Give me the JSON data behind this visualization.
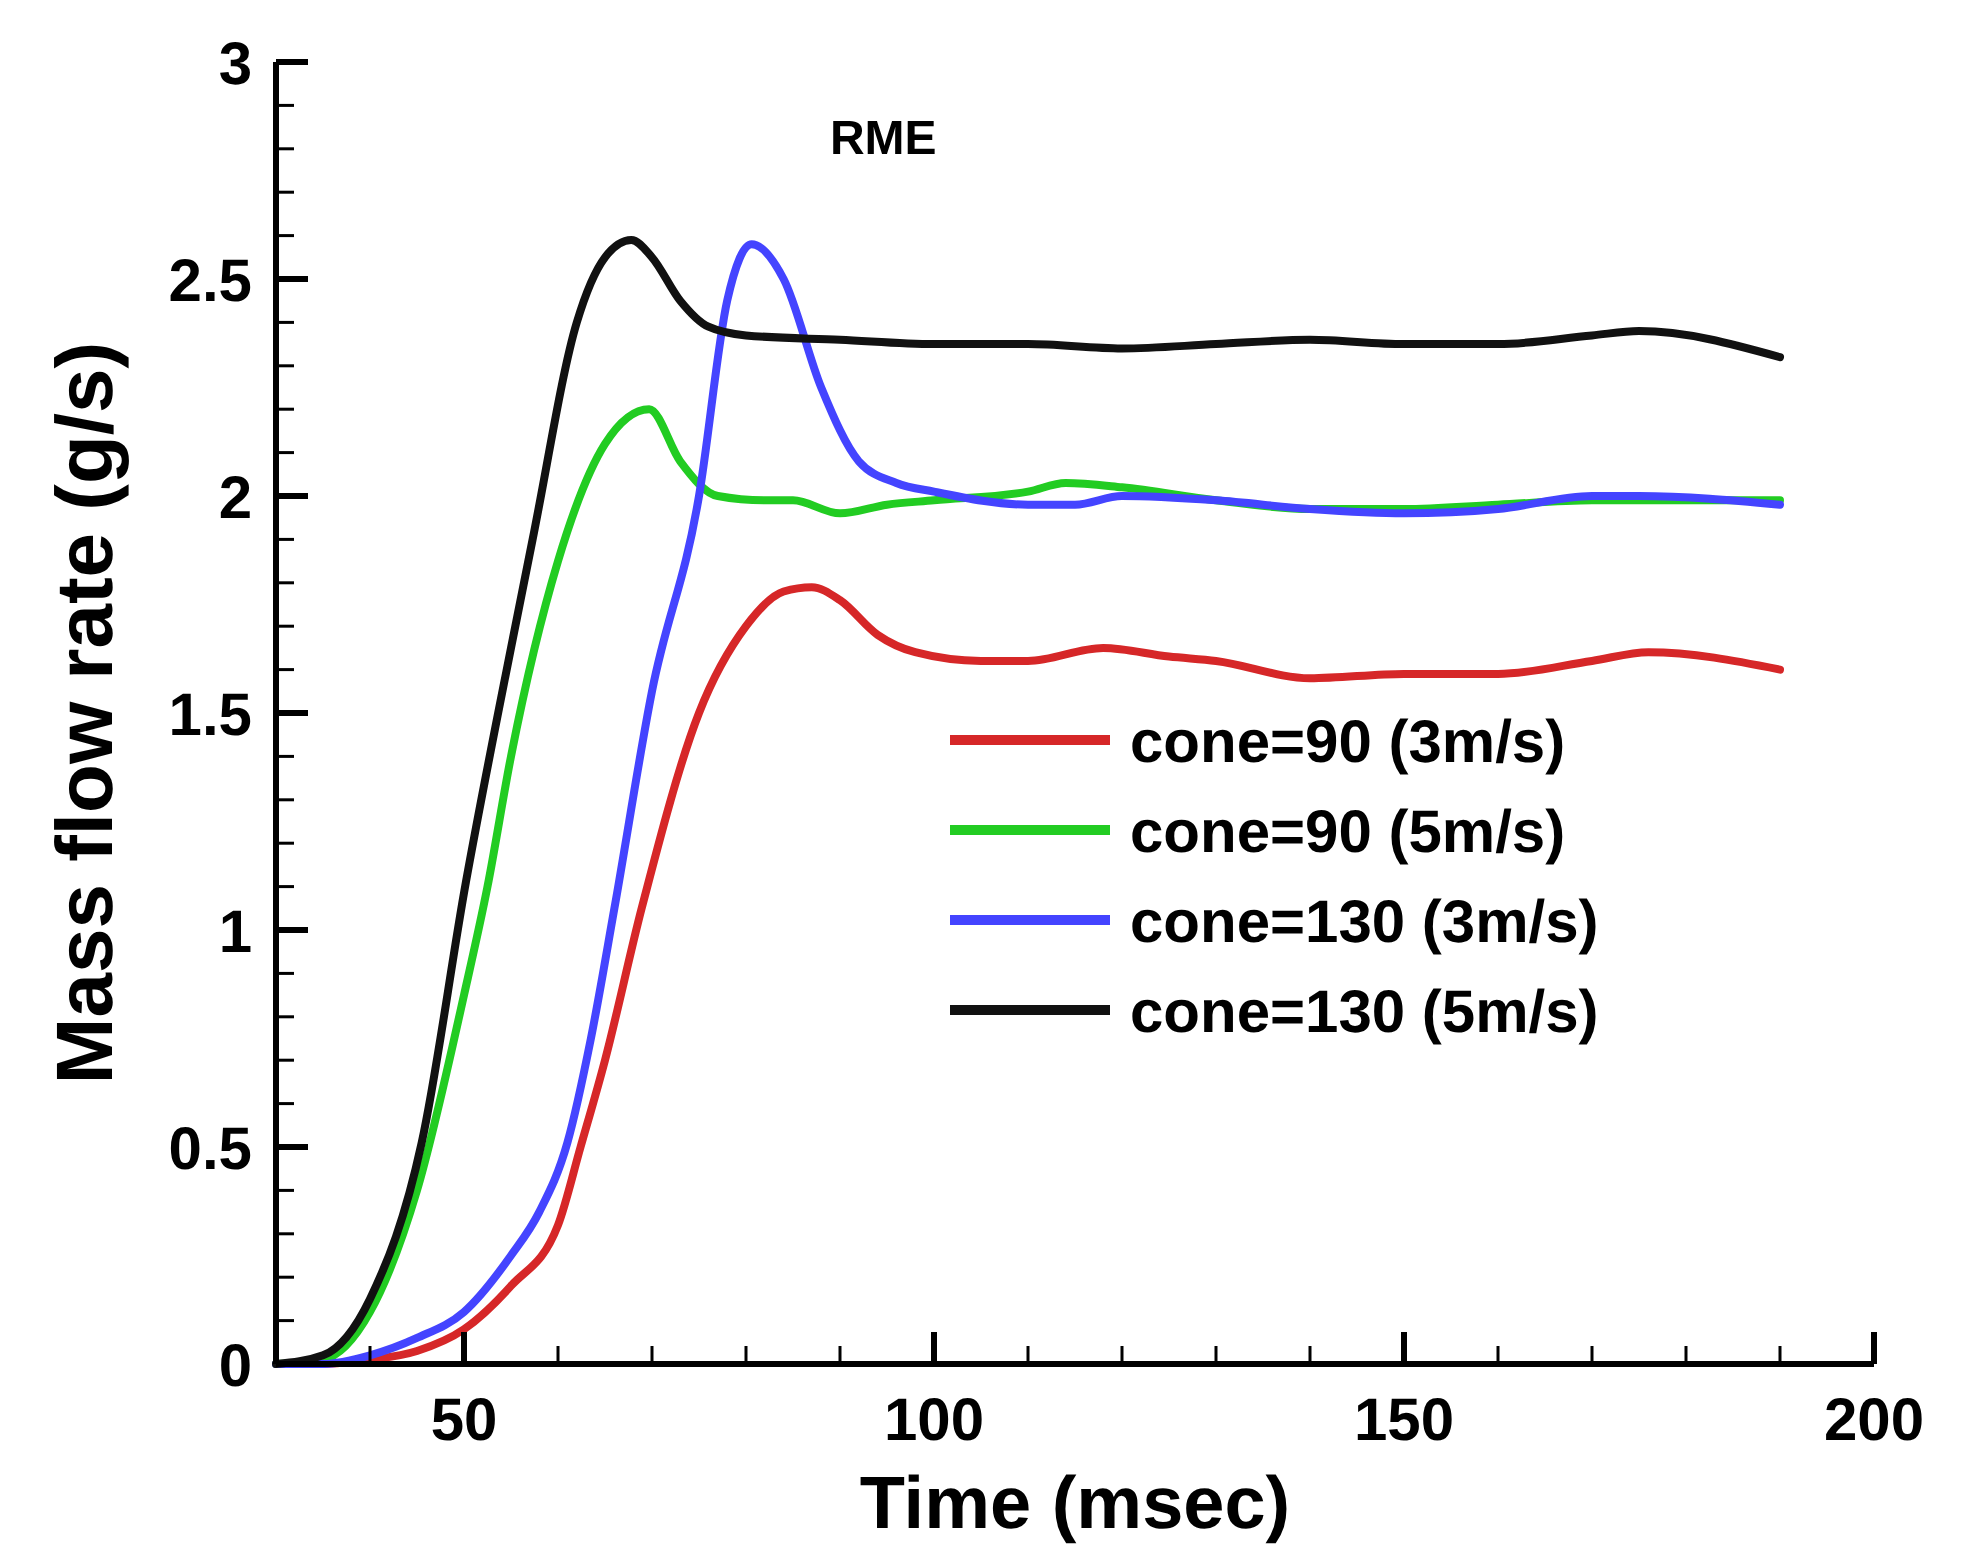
{
  "chart_data": {
    "type": "line",
    "title": "RME",
    "xlabel": "Time (msec)",
    "ylabel": "Mass flow rate (g/s)",
    "xlim": [
      30,
      200
    ],
    "ylim": [
      0,
      3
    ],
    "xticks": [
      {
        "value": 40,
        "label": null
      },
      50,
      {
        "value": 60,
        "label": null
      },
      {
        "value": 70,
        "label": null
      },
      {
        "value": 80,
        "label": null
      },
      {
        "value": 90,
        "label": null
      },
      100,
      {
        "value": 110,
        "label": null
      },
      {
        "value": 120,
        "label": null
      },
      {
        "value": 130,
        "label": null
      },
      {
        "value": 140,
        "label": null
      },
      150,
      {
        "value": 160,
        "label": null
      },
      {
        "value": 170,
        "label": null
      },
      {
        "value": 180,
        "label": null
      },
      {
        "value": 190,
        "label": null
      },
      200
    ],
    "yticks": [
      0,
      {
        "value": 0.1,
        "label": null
      },
      {
        "value": 0.2,
        "label": null
      },
      {
        "value": 0.3,
        "label": null
      },
      {
        "value": 0.4,
        "label": null
      },
      0.5,
      {
        "value": 0.6,
        "label": null
      },
      {
        "value": 0.7,
        "label": null
      },
      {
        "value": 0.8,
        "label": null
      },
      {
        "value": 0.9,
        "label": null
      },
      1,
      {
        "value": 1.1,
        "label": null
      },
      {
        "value": 1.2,
        "label": null
      },
      {
        "value": 1.3,
        "label": null
      },
      {
        "value": 1.4,
        "label": null
      },
      1.5,
      {
        "value": 1.6,
        "label": null
      },
      {
        "value": 1.7,
        "label": null
      },
      {
        "value": 1.8,
        "label": null
      },
      {
        "value": 1.9,
        "label": null
      },
      2,
      {
        "value": 2.1,
        "label": null
      },
      {
        "value": 2.2,
        "label": null
      },
      {
        "value": 2.3,
        "label": null
      },
      {
        "value": 2.4,
        "label": null
      },
      2.5,
      {
        "value": 2.6,
        "label": null
      },
      {
        "value": 2.7,
        "label": null
      },
      {
        "value": 2.8,
        "label": null
      },
      {
        "value": 2.9,
        "label": null
      },
      3
    ],
    "grid": false,
    "legend": "right",
    "marker": "none",
    "line_style": "solid",
    "series": [
      {
        "name": "cone=90 (3m/s)",
        "color": "#d62728",
        "x": [
          30,
          35,
          40,
          45,
          50,
          55,
          60,
          62.4,
          65,
          68.9,
          75,
          80,
          84,
          87,
          90,
          94,
          98,
          105,
          110,
          118,
          125,
          130,
          140,
          150,
          160,
          170,
          176,
          190
        ],
        "values": [
          0,
          0,
          0.01,
          0.03,
          0.08,
          0.18,
          0.32,
          0.5,
          0.7,
          1.05,
          1.5,
          1.7,
          1.78,
          1.79,
          1.76,
          1.68,
          1.64,
          1.62,
          1.62,
          1.65,
          1.63,
          1.62,
          1.58,
          1.59,
          1.59,
          1.62,
          1.64,
          1.6
        ]
      },
      {
        "name": "cone=90 (5m/s)",
        "color": "#22cc22",
        "x": [
          30,
          35,
          40,
          45,
          50,
          52.5,
          55,
          60,
          65,
          69.7,
          73,
          77,
          82,
          85,
          90,
          95,
          100,
          110,
          114,
          120,
          130,
          140,
          150,
          160,
          170,
          180,
          190
        ],
        "values": [
          0,
          0.01,
          0.12,
          0.4,
          0.85,
          1.1,
          1.4,
          1.85,
          2.12,
          2.2,
          2.08,
          2.0,
          1.99,
          1.99,
          1.96,
          1.98,
          1.99,
          2.01,
          2.03,
          2.02,
          1.99,
          1.97,
          1.97,
          1.98,
          1.99,
          1.99,
          1.99
        ]
      },
      {
        "name": "cone=130 (3m/s)",
        "color": "#4444ff",
        "x": [
          30,
          35,
          40,
          45,
          50,
          55,
          58,
          61,
          63.5,
          66,
          70,
          75,
          78,
          80.6,
          84,
          88,
          92,
          96,
          100,
          110,
          115,
          120,
          130,
          140,
          150,
          160,
          170,
          175,
          190
        ],
        "values": [
          0,
          0,
          0.02,
          0.06,
          0.12,
          0.25,
          0.35,
          0.51,
          0.75,
          1.05,
          1.55,
          2.0,
          2.45,
          2.58,
          2.5,
          2.25,
          2.08,
          2.03,
          2.01,
          1.98,
          1.98,
          2.0,
          1.99,
          1.97,
          1.96,
          1.97,
          2.0,
          2.0,
          1.98
        ]
      },
      {
        "name": "cone=130 (5m/s)",
        "color": "#111111",
        "x": [
          30,
          35,
          40,
          45.5,
          50.2,
          55,
          57.3,
          62,
          65,
          67.8,
          70,
          73,
          76,
          80,
          90,
          100,
          110,
          120,
          130,
          140,
          150,
          160,
          170,
          175,
          190
        ],
        "values": [
          0,
          0.02,
          0.15,
          0.51,
          1.11,
          1.65,
          1.9,
          2.4,
          2.55,
          2.59,
          2.55,
          2.45,
          2.39,
          2.37,
          2.36,
          2.35,
          2.35,
          2.34,
          2.35,
          2.36,
          2.35,
          2.35,
          2.37,
          2.38,
          2.32
        ]
      }
    ]
  }
}
